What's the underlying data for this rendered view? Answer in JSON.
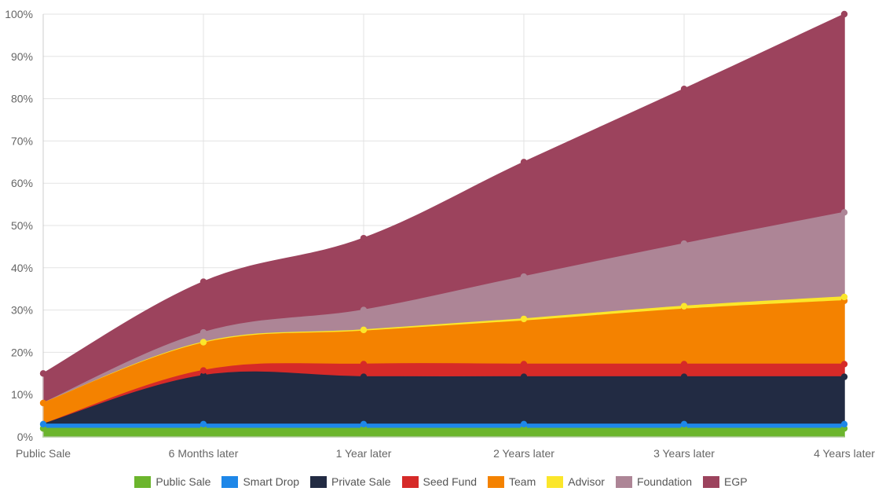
{
  "chart_data": {
    "type": "area",
    "stacked": true,
    "categories": [
      "Public Sale",
      "6 Months later",
      "1 Year later",
      "2 Years later",
      "3 Years later",
      "4 Years later"
    ],
    "y_tick_labels": [
      "0%",
      "10%",
      "20%",
      "30%",
      "40%",
      "50%",
      "60%",
      "70%",
      "80%",
      "90%",
      "100%"
    ],
    "ylim": [
      0,
      100
    ],
    "grid": true,
    "legend_position": "bottom",
    "series": [
      {
        "name": "Public Sale",
        "color": "#6cb52d",
        "values": [
          2,
          2,
          2,
          2,
          2,
          2
        ]
      },
      {
        "name": "Smart Drop",
        "color": "#1e87e8",
        "values": [
          1,
          1,
          1,
          1,
          1,
          1
        ]
      },
      {
        "name": "Private Sale",
        "color": "#222b43",
        "values": [
          0,
          11.5,
          11.2,
          11.2,
          11.2,
          11.2
        ]
      },
      {
        "name": "Seed Fund",
        "color": "#d62a28",
        "values": [
          0,
          1.2,
          3,
          3,
          3,
          3
        ]
      },
      {
        "name": "Team",
        "color": "#f48200",
        "values": [
          5,
          6.5,
          7.8,
          10.2,
          13,
          15
        ]
      },
      {
        "name": "Advisor",
        "color": "#fbe62b",
        "values": [
          0,
          0.2,
          0.3,
          0.5,
          0.7,
          0.9
        ]
      },
      {
        "name": "Foundation",
        "color": "#ad8596",
        "values": [
          0,
          2.3,
          4.7,
          10,
          14.8,
          20
        ]
      },
      {
        "name": "EGP",
        "color": "#9c435d",
        "values": [
          7,
          12,
          17,
          27.1,
          36.6,
          46.9
        ]
      }
    ]
  }
}
